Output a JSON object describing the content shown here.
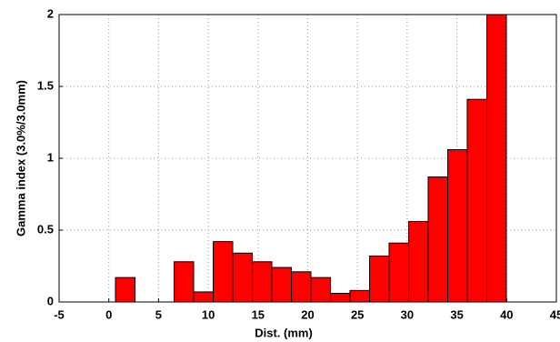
{
  "chart_data": {
    "type": "histogram",
    "x_label": "Dist. (mm)",
    "y_label": "Gamma index (3.0%/3.0mm)",
    "bins": [
      0.67,
      2.64,
      4.6,
      6.57,
      8.53,
      10.5,
      12.46,
      14.43,
      16.39,
      18.36,
      20.32,
      22.29,
      24.25,
      26.22,
      28.18,
      30.15,
      32.11,
      34.08,
      36.04,
      38.01,
      39.97
    ],
    "values": [
      0.17,
      0,
      0,
      0.28,
      0.07,
      0.42,
      0.34,
      0.28,
      0.24,
      0.21,
      0.17,
      0.06,
      0.08,
      0.32,
      0.41,
      0.56,
      0.87,
      1.06,
      1.41,
      2.0
    ],
    "color": "#ff0000",
    "xlim": [
      -5,
      45
    ],
    "xticks": [
      -5,
      0,
      5,
      10,
      15,
      20,
      25,
      30,
      35,
      40,
      45
    ],
    "ylim": [
      0,
      2
    ],
    "yticks": [
      0,
      0.5,
      1,
      1.5,
      2
    ],
    "grid": true
  }
}
